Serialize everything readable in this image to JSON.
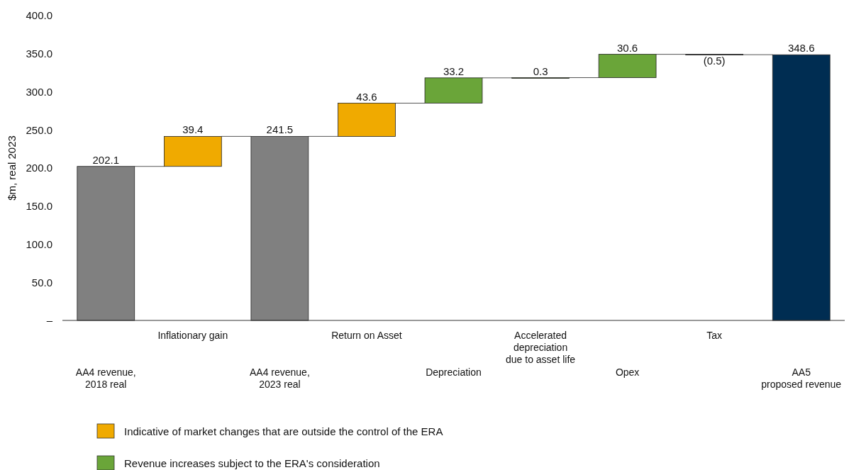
{
  "chart_data": {
    "type": "bar",
    "ylabel": "$m, real 2023",
    "categories": [
      "AA4 revenue,\n2018 real",
      "Inflationary gain",
      "AA4 revenue,\n2023 real",
      "Return on Asset",
      "Depreciation",
      "Accelerated\ndepreciation\ndue to asset life",
      "Opex",
      "Tax",
      "AA5\nproposed revenue"
    ],
    "series": [
      {
        "color": "#808080",
        "values": [
          202.1,
          null,
          241.5,
          null,
          null,
          null,
          null,
          null,
          null
        ],
        "base": [
          0,
          null,
          0,
          null,
          null,
          null,
          null,
          null,
          null
        ]
      },
      {
        "name": "Indicative of market changes that are outside the control of the ERA",
        "color": "#f0aa00",
        "values": [
          null,
          39.4,
          null,
          43.6,
          null,
          null,
          null,
          null,
          null
        ],
        "base": [
          null,
          202.1,
          null,
          241.5,
          null,
          null,
          null,
          null,
          null
        ]
      },
      {
        "name": "Revenue increases subject to the ERA's consideration",
        "color": "#6aa539",
        "values": [
          null,
          null,
          null,
          null,
          33.2,
          0.3,
          30.6,
          null,
          null
        ],
        "base": [
          null,
          null,
          null,
          null,
          285.1,
          318.3,
          318.6,
          null,
          null
        ]
      },
      {
        "color": "#1a1a1a",
        "values": [
          null,
          null,
          null,
          null,
          null,
          null,
          null,
          -0.5,
          null
        ],
        "base": [
          null,
          null,
          null,
          null,
          null,
          null,
          null,
          349.2,
          null
        ]
      },
      {
        "color": "#002d52",
        "values": [
          null,
          null,
          null,
          null,
          null,
          null,
          null,
          null,
          348.6
        ],
        "base": [
          null,
          null,
          null,
          null,
          null,
          null,
          null,
          null,
          0
        ]
      }
    ],
    "value_labels": [
      "202.1",
      "39.4",
      "241.5",
      "43.6",
      "33.2",
      "0.3",
      "30.6",
      "(0.5)",
      "348.6"
    ],
    "ylim": [
      0,
      400
    ],
    "yticks": [
      {
        "value": 0,
        "label": "–"
      },
      {
        "value": 50,
        "label": "50.0"
      },
      {
        "value": 100,
        "label": "100.0"
      },
      {
        "value": 150,
        "label": "150.0"
      },
      {
        "value": 200,
        "label": "200.0"
      },
      {
        "value": 250,
        "label": "250.0"
      },
      {
        "value": 300,
        "label": "300.0"
      },
      {
        "value": 350,
        "label": "350.0"
      },
      {
        "value": 400,
        "label": "400.0"
      }
    ],
    "grid": false,
    "legend": "bottom"
  }
}
